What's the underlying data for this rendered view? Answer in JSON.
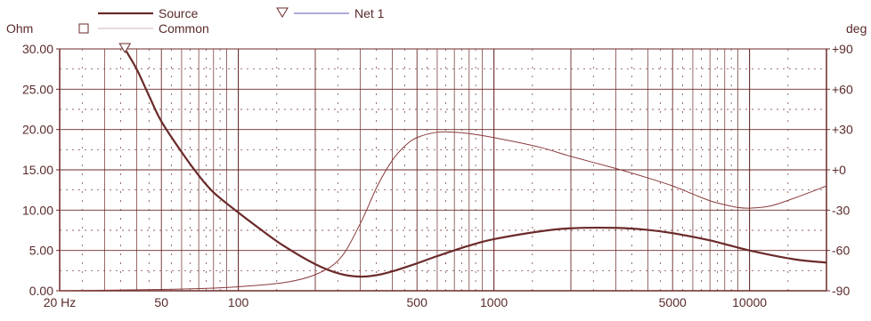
{
  "chart_data": {
    "type": "line",
    "y_left_unit": "Ohm",
    "y_right_unit": "deg",
    "x_scale": "log",
    "xlim": [
      20,
      20000
    ],
    "ylim_left": [
      0,
      30
    ],
    "ylim_right": [
      -90,
      90
    ],
    "grid": true,
    "x_tick_labels": [
      "20 Hz",
      "50",
      "100",
      "500",
      "1000",
      "5000",
      "10000"
    ],
    "x_tick_values": [
      20,
      50,
      100,
      500,
      1000,
      5000,
      10000
    ],
    "y_left_ticks": [
      "0.00",
      "5.00",
      "10.00",
      "15.00",
      "20.00",
      "25.00",
      "30.00"
    ],
    "y_right_ticks": [
      "-90",
      "-60",
      "-30",
      "+0",
      "+30",
      "+60",
      "+90"
    ],
    "legend": [
      {
        "name": "Source",
        "color": "#6b2a2a",
        "marker": "none"
      },
      {
        "name": "Common",
        "color": "#c8b8b8",
        "marker": "square"
      },
      {
        "name": "Net 1",
        "color": "#5a5ab0",
        "marker": "triangle"
      }
    ],
    "colors": {
      "axis": "#6b2a2a",
      "grid": "#6b2a2a",
      "impedance": "#6b2a2a",
      "phase": "#8a3a3a"
    },
    "series": [
      {
        "name": "Source",
        "axis": "left",
        "x": [
          36,
          40,
          45,
          50,
          60,
          70,
          80,
          100,
          120,
          150,
          200,
          250,
          300,
          350,
          400,
          500,
          600,
          800,
          1000,
          1500,
          2000,
          3000,
          4000,
          5000,
          7000,
          10000,
          15000,
          20000
        ],
        "y": [
          30.0,
          27.5,
          24.0,
          21.0,
          17.2,
          14.3,
          12.2,
          9.7,
          7.8,
          5.6,
          3.3,
          2.1,
          1.75,
          1.95,
          2.4,
          3.4,
          4.3,
          5.6,
          6.4,
          7.35,
          7.75,
          7.8,
          7.55,
          7.15,
          6.25,
          5.0,
          3.9,
          3.5
        ]
      },
      {
        "name": "Net 1",
        "axis": "right",
        "x": [
          20,
          50,
          80,
          100,
          150,
          200,
          250,
          300,
          350,
          400,
          450,
          500,
          600,
          700,
          800,
          1000,
          1500,
          2000,
          3000,
          4000,
          5000,
          6000,
          7000,
          8000,
          9000,
          10000,
          12000,
          15000,
          20000
        ],
        "y": [
          -90,
          -89,
          -88,
          -87,
          -84,
          -78,
          -66,
          -40,
          -12,
          7,
          18,
          24,
          28,
          28,
          27,
          24,
          17,
          10,
          1,
          -6,
          -12,
          -18,
          -23,
          -26,
          -28,
          -28.5,
          -27,
          -21,
          -12
        ]
      }
    ],
    "markers": [
      {
        "series": "Net 1",
        "shape": "triangle",
        "x": 36,
        "y_left": 30
      }
    ]
  }
}
